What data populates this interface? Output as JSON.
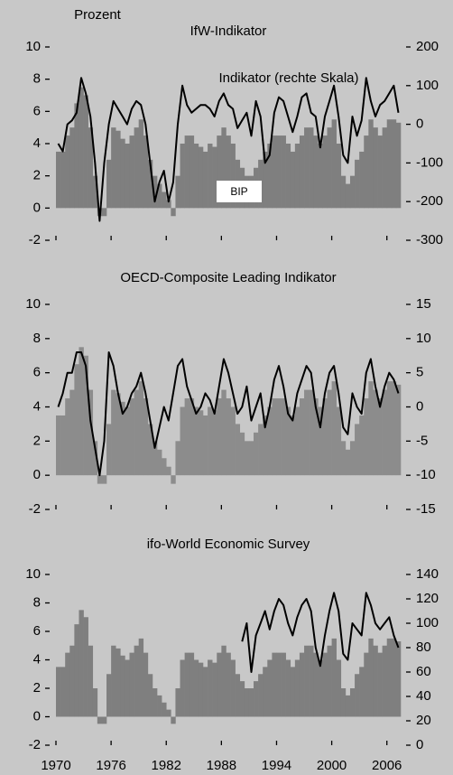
{
  "header": {
    "unit_label": "Prozent"
  },
  "chart_data": [
    {
      "type": "combo",
      "title": "IfW-Indikator",
      "annotations": [
        "Indikator (rechte Skala)",
        "BIP"
      ],
      "x": [
        1970,
        1970.5,
        1971,
        1971.5,
        1972,
        1972.5,
        1973,
        1973.5,
        1974,
        1974.5,
        1975,
        1975.5,
        1976,
        1976.5,
        1977,
        1977.5,
        1978,
        1978.5,
        1979,
        1979.5,
        1980,
        1980.5,
        1981,
        1981.5,
        1982,
        1982.5,
        1983,
        1983.5,
        1984,
        1984.5,
        1985,
        1985.5,
        1986,
        1986.5,
        1987,
        1987.5,
        1988,
        1988.5,
        1989,
        1989.5,
        1990,
        1990.5,
        1991,
        1991.5,
        1992,
        1992.5,
        1993,
        1993.5,
        1994,
        1994.5,
        1995,
        1995.5,
        1996,
        1996.5,
        1997,
        1997.5,
        1998,
        1998.5,
        1999,
        1999.5,
        2000,
        2000.5,
        2001,
        2001.5,
        2002,
        2002.5,
        2003,
        2003.5,
        2004,
        2004.5,
        2005,
        2005.5,
        2006,
        2006.5,
        2007
      ],
      "bars": {
        "color": "#7f7f7f",
        "values": [
          3.5,
          3.5,
          4.5,
          5,
          6.5,
          7.5,
          7,
          5,
          2,
          -0.5,
          -0.5,
          3,
          5,
          4.8,
          4.3,
          4,
          4.5,
          5,
          5.5,
          4.5,
          3,
          2,
          1.5,
          1,
          0.5,
          -0.5,
          2,
          4,
          4.5,
          4.5,
          4,
          3.8,
          3.5,
          4,
          3.8,
          4.5,
          5,
          4.5,
          4,
          3,
          2.5,
          2,
          2,
          2.5,
          3,
          3.5,
          4,
          4.5,
          4.5,
          4.5,
          4,
          3.5,
          4,
          4.5,
          5,
          5,
          4.5,
          4,
          4.5,
          5,
          5.5,
          4,
          2,
          1.5,
          2,
          3,
          3.5,
          4.5,
          5.5,
          5,
          4.5,
          5,
          5.5,
          5.5,
          5.3
        ]
      },
      "line": {
        "color": "#000000",
        "axis": "y2",
        "values": [
          -50,
          -70,
          0,
          10,
          30,
          120,
          80,
          20,
          -100,
          -250,
          -100,
          0,
          60,
          40,
          20,
          0,
          40,
          60,
          50,
          0,
          -100,
          -200,
          -150,
          -120,
          -200,
          -150,
          0,
          100,
          50,
          30,
          40,
          50,
          50,
          40,
          20,
          60,
          80,
          50,
          40,
          -10,
          10,
          30,
          -30,
          60,
          20,
          -100,
          -80,
          30,
          70,
          60,
          20,
          -20,
          20,
          70,
          80,
          30,
          20,
          -60,
          20,
          60,
          100,
          20,
          -80,
          -100,
          20,
          -30,
          10,
          120,
          60,
          20,
          50,
          60,
          80,
          100,
          30
        ]
      },
      "xlim": [
        1970,
        2007.5
      ],
      "xticks": [
        1970,
        1976,
        1982,
        1988,
        1994,
        2000,
        2006
      ],
      "show_xtick_labels": false,
      "ylim": [
        -2,
        10
      ],
      "yticks": [
        -2,
        0,
        2,
        4,
        6,
        8,
        10
      ],
      "y2lim": [
        -300,
        200
      ],
      "y2ticks": [
        -300,
        -200,
        -100,
        0,
        100,
        200
      ]
    },
    {
      "type": "combo",
      "title": "OECD-Composite Leading Indikator",
      "x": [
        1970,
        1970.5,
        1971,
        1971.5,
        1972,
        1972.5,
        1973,
        1973.5,
        1974,
        1974.5,
        1975,
        1975.5,
        1976,
        1976.5,
        1977,
        1977.5,
        1978,
        1978.5,
        1979,
        1979.5,
        1980,
        1980.5,
        1981,
        1981.5,
        1982,
        1982.5,
        1983,
        1983.5,
        1984,
        1984.5,
        1985,
        1985.5,
        1986,
        1986.5,
        1987,
        1987.5,
        1988,
        1988.5,
        1989,
        1989.5,
        1990,
        1990.5,
        1991,
        1991.5,
        1992,
        1992.5,
        1993,
        1993.5,
        1994,
        1994.5,
        1995,
        1995.5,
        1996,
        1996.5,
        1997,
        1997.5,
        1998,
        1998.5,
        1999,
        1999.5,
        2000,
        2000.5,
        2001,
        2001.5,
        2002,
        2002.5,
        2003,
        2003.5,
        2004,
        2004.5,
        2005,
        2005.5,
        2006,
        2006.5,
        2007
      ],
      "bars": {
        "color": "#8c8c8c",
        "values": [
          3.5,
          3.5,
          4.5,
          5,
          6.5,
          7.5,
          7,
          5,
          2,
          -0.5,
          -0.5,
          3,
          5,
          4.8,
          4.3,
          4,
          4.5,
          5,
          5.5,
          4.5,
          3,
          2,
          1.5,
          1,
          0.5,
          -0.5,
          2,
          4,
          4.5,
          4.5,
          4,
          3.8,
          3.5,
          4,
          3.8,
          4.5,
          5,
          4.5,
          4,
          3,
          2.5,
          2,
          2,
          2.5,
          3,
          3.5,
          4,
          4.5,
          4.5,
          4.5,
          4,
          3.5,
          4,
          4.5,
          5,
          5,
          4.5,
          4,
          4.5,
          5,
          5.5,
          4,
          2,
          1.5,
          2,
          3,
          3.5,
          4.5,
          5.5,
          5,
          4.5,
          5,
          5.5,
          5.5,
          5.3
        ]
      },
      "line": {
        "color": "#000000",
        "axis": "y2",
        "values": [
          0,
          2,
          5,
          5,
          8,
          8,
          6,
          -2,
          -6,
          -10,
          -5,
          8,
          6,
          2,
          -1,
          0,
          2,
          3,
          5,
          2,
          -2,
          -6,
          -3,
          0,
          -2,
          2,
          6,
          7,
          3,
          1,
          -1,
          0,
          2,
          1,
          -1,
          3,
          7,
          5,
          2,
          -1,
          0,
          3,
          -2,
          0,
          2,
          -3,
          0,
          4,
          6,
          3,
          -1,
          -2,
          2,
          4,
          6,
          5,
          0,
          -3,
          2,
          5,
          6,
          2,
          -3,
          -4,
          2,
          0,
          -1,
          5,
          7,
          3,
          0,
          3,
          5,
          4,
          2
        ]
      },
      "xlim": [
        1970,
        2007.5
      ],
      "xticks": [
        1970,
        1976,
        1982,
        1988,
        1994,
        2000,
        2006
      ],
      "show_xtick_labels": false,
      "ylim": [
        -2,
        10
      ],
      "yticks": [
        -2,
        0,
        2,
        4,
        6,
        8,
        10
      ],
      "y2lim": [
        -15,
        15
      ],
      "y2ticks": [
        -15,
        -10,
        -5,
        0,
        5,
        10,
        15
      ]
    },
    {
      "type": "combo",
      "title": "ifo-World Economic Survey",
      "x": [
        1970,
        1970.5,
        1971,
        1971.5,
        1972,
        1972.5,
        1973,
        1973.5,
        1974,
        1974.5,
        1975,
        1975.5,
        1976,
        1976.5,
        1977,
        1977.5,
        1978,
        1978.5,
        1979,
        1979.5,
        1980,
        1980.5,
        1981,
        1981.5,
        1982,
        1982.5,
        1983,
        1983.5,
        1984,
        1984.5,
        1985,
        1985.5,
        1986,
        1986.5,
        1987,
        1987.5,
        1988,
        1988.5,
        1989,
        1989.5,
        1990,
        1990.5,
        1991,
        1991.5,
        1992,
        1992.5,
        1993,
        1993.5,
        1994,
        1994.5,
        1995,
        1995.5,
        1996,
        1996.5,
        1997,
        1997.5,
        1998,
        1998.5,
        1999,
        1999.5,
        2000,
        2000.5,
        2001,
        2001.5,
        2002,
        2002.5,
        2003,
        2003.5,
        2004,
        2004.5,
        2005,
        2005.5,
        2006,
        2006.5,
        2007
      ],
      "bars": {
        "color": "#7f7f7f",
        "values": [
          3.5,
          3.5,
          4.5,
          5,
          6.5,
          7.5,
          7,
          5,
          2,
          -0.5,
          -0.5,
          3,
          5,
          4.8,
          4.3,
          4,
          4.5,
          5,
          5.5,
          4.5,
          3,
          2,
          1.5,
          1,
          0.5,
          -0.5,
          2,
          4,
          4.5,
          4.5,
          4,
          3.8,
          3.5,
          4,
          3.8,
          4.5,
          5,
          4.5,
          4,
          3,
          2.5,
          2,
          2,
          2.5,
          3,
          3.5,
          4,
          4.5,
          4.5,
          4.5,
          4,
          3.5,
          4,
          4.5,
          5,
          5,
          4.5,
          4,
          4.5,
          5,
          5.5,
          4,
          2,
          1.5,
          2,
          3,
          3.5,
          4.5,
          5.5,
          5,
          4.5,
          5,
          5.5,
          5.5,
          5.3
        ]
      },
      "line": {
        "color": "#000000",
        "axis": "y2",
        "values": [
          null,
          null,
          null,
          null,
          null,
          null,
          null,
          null,
          null,
          null,
          null,
          null,
          null,
          null,
          null,
          null,
          null,
          null,
          null,
          null,
          null,
          null,
          null,
          null,
          null,
          null,
          null,
          null,
          null,
          null,
          null,
          null,
          null,
          null,
          null,
          null,
          null,
          null,
          null,
          null,
          85,
          100,
          60,
          90,
          100,
          110,
          95,
          110,
          120,
          115,
          100,
          90,
          105,
          115,
          120,
          110,
          80,
          65,
          90,
          110,
          125,
          110,
          75,
          70,
          100,
          95,
          90,
          125,
          115,
          100,
          95,
          100,
          105,
          90,
          80
        ]
      },
      "xlim": [
        1970,
        2007.5
      ],
      "xticks": [
        1970,
        1976,
        1982,
        1988,
        1994,
        2000,
        2006
      ],
      "show_xtick_labels": true,
      "ylim": [
        -2,
        10
      ],
      "yticks": [
        -2,
        0,
        2,
        4,
        6,
        8,
        10
      ],
      "y2lim": [
        0,
        140
      ],
      "y2ticks": [
        0,
        20,
        40,
        60,
        80,
        100,
        120,
        140
      ]
    }
  ]
}
